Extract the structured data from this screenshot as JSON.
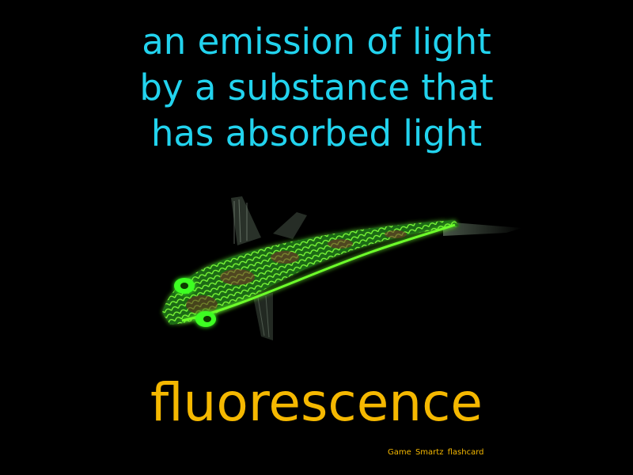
{
  "card": {
    "definition_lines": [
      "an emission of light",
      "by a substance that",
      "has absorbed light"
    ],
    "term": "fluorescence",
    "credit": "Game Smartz flashcard",
    "illustration_icon": "glowing-fish-icon",
    "colors": {
      "background": "#000000",
      "definition": "#22d3ee",
      "term": "#f5b800",
      "fish_glow": "#39ff14"
    }
  }
}
